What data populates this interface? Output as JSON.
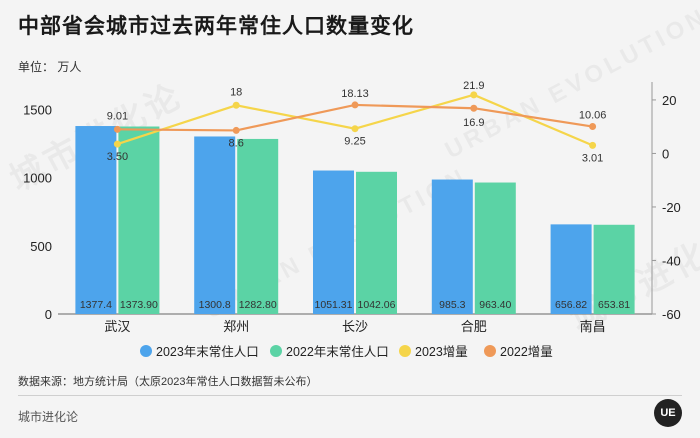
{
  "header": {
    "title": "中部省会城市过去两年常住人口数量变化",
    "unit": "单位：  万人"
  },
  "footer": {
    "source": "数据来源：地方统计局（太原2023年常住人口数据暂未公布）",
    "brand": "城市进化论",
    "logo_text": "UE"
  },
  "watermark": {
    "cn": "城市进化论",
    "en": "URBAN EVOLUTION"
  },
  "colors": {
    "bar2023": "#4da4ec",
    "bar2022": "#5bd3a5",
    "line2023": "#f5d54a",
    "line2022": "#ef9958"
  },
  "chart_data": {
    "type": "bar",
    "categories": [
      "武汉",
      "郑州",
      "长沙",
      "合肥",
      "南昌"
    ],
    "series": [
      {
        "name": "2023年末常住人口",
        "kind": "bar",
        "axis": "left",
        "values": [
          1377.4,
          1300.8,
          1051.31,
          985.3,
          656.82
        ],
        "labels": [
          "1377.4",
          "1300.8",
          "1051.31",
          "985.3",
          "656.82"
        ]
      },
      {
        "name": "2022年末常住人口",
        "kind": "bar",
        "axis": "left",
        "values": [
          1373.9,
          1282.8,
          1042.06,
          963.4,
          653.81
        ],
        "labels": [
          "1373.90",
          "1282.80",
          "1042.06",
          "963.40",
          "653.81"
        ]
      },
      {
        "name": "2023增量",
        "kind": "line",
        "axis": "right",
        "values": [
          3.5,
          18,
          9.25,
          21.9,
          3.01
        ],
        "labels": [
          "3.50",
          "18",
          "9.25",
          "21.9",
          "3.01"
        ]
      },
      {
        "name": "2022增量",
        "kind": "line",
        "axis": "right",
        "values": [
          9.01,
          8.6,
          18.13,
          16.9,
          10.06
        ],
        "labels": [
          "9.01",
          "8.6",
          "18.13",
          "16.9",
          "10.06"
        ]
      }
    ],
    "y_left": {
      "min": 0,
      "max": 1700,
      "ticks": [
        "0",
        "500",
        "1000",
        "1500"
      ]
    },
    "y_right": {
      "min": -60,
      "max": 26.7,
      "ticks": [
        "-60",
        "-40",
        "-20",
        "0",
        "20"
      ]
    },
    "legend": [
      "2023年末常住人口",
      "2022年末常住人口",
      "2023增量",
      "2022增量"
    ]
  }
}
